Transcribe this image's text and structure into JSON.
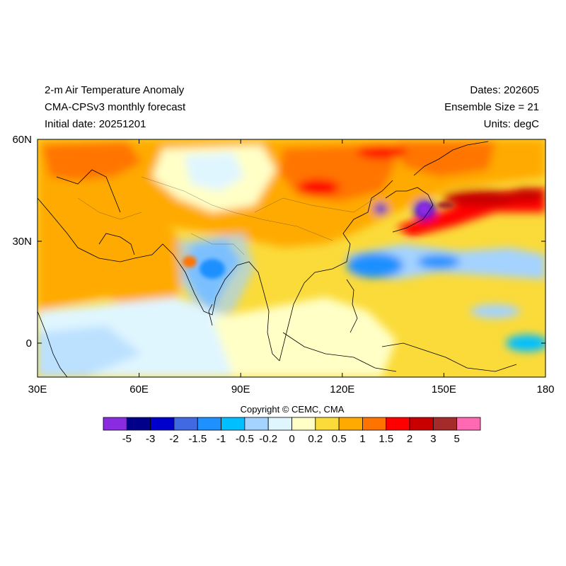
{
  "header": {
    "left": [
      "2-m Air Temperature Anomaly",
      "CMA-CPSv3 monthly forecast",
      "Initial date: 20251201"
    ],
    "right": [
      "Dates: 202605",
      "Ensemble Size = 21",
      "Units: degC"
    ]
  },
  "axes": {
    "x_ticks": [
      "30E",
      "60E",
      "90E",
      "120E",
      "150E",
      "180"
    ],
    "y_ticks": [
      "60N",
      "30N",
      "0"
    ],
    "lon_range": [
      30,
      180
    ],
    "lat_range": [
      -10,
      60
    ]
  },
  "copyright": "Copyright © CEMC, CMA",
  "colorbar": {
    "labels": [
      "-5",
      "-3",
      "-2",
      "-1.5",
      "-1",
      "-0.5",
      "-0.2",
      "0",
      "0.2",
      "0.5",
      "1",
      "1.5",
      "2",
      "3",
      "5"
    ],
    "colors": [
      "#8a2be2",
      "#00008b",
      "#0000cd",
      "#4169e1",
      "#1e90ff",
      "#00bfff",
      "#a4d3ff",
      "#e0f6ff",
      "#ffffc6",
      "#fbdb3a",
      "#ffaa00",
      "#ff7400",
      "#ff0000",
      "#c80000",
      "#a52a2a",
      "#ff69b4"
    ]
  }
}
